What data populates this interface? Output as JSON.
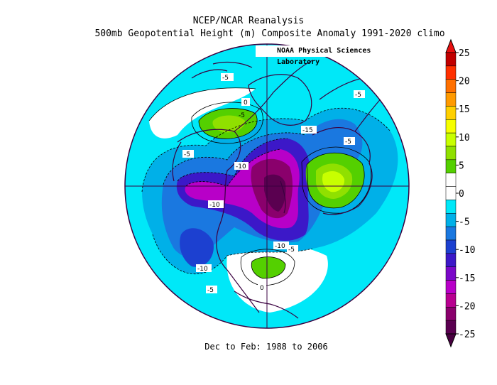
{
  "title": "NCEP/NCAR Reanalysis",
  "subtitle": "500mb Geopotential Height (m) Composite Anomaly 1991-2020 climo",
  "credit": "NOAA Physical Sciences Laboratory",
  "footer": "Dec to Feb: 1988 to 2006",
  "map_labels": [
    "-5",
    "0",
    "-5",
    "-15",
    "-5",
    "-5",
    "-10",
    "-10",
    "-10",
    "-5",
    "-10",
    "-5",
    "0",
    "-5"
  ],
  "colorbar": {
    "labels": [
      "25",
      "20",
      "15",
      "10",
      "5",
      "0",
      "-5",
      "-10",
      "-15",
      "-20",
      "-25"
    ],
    "colors": [
      "#c10000",
      "#ff3000",
      "#ff7000",
      "#ff9a00",
      "#ffd000",
      "#f6ff00",
      "#c8ff00",
      "#90e000",
      "#54d000",
      "#ffffff",
      "#ffffff",
      "#00e8f8",
      "#00b0e8",
      "#1a78e0",
      "#1c40d0",
      "#3c18c8",
      "#7a08c8",
      "#b800c8",
      "#b80090",
      "#8a006c",
      "#5a0050"
    ],
    "top_arrow": "#e81010",
    "bottom_arrow": "#480040"
  },
  "palette": {
    "ocean_mid": "#00e8f8",
    "anom_neg1": "#00b0e8",
    "anom_neg2": "#1a78e0",
    "anom_neg3": "#1c40d0",
    "anom_neg4": "#3c18c8",
    "anom_neg5": "#b800c8",
    "anom_neg6": "#8a006c",
    "anom_neg7": "#5a0050",
    "anom_pos1": "#54d000",
    "anom_pos2": "#90e000",
    "anom_pos3": "#c8ff00",
    "land_line": "#3a0040"
  }
}
